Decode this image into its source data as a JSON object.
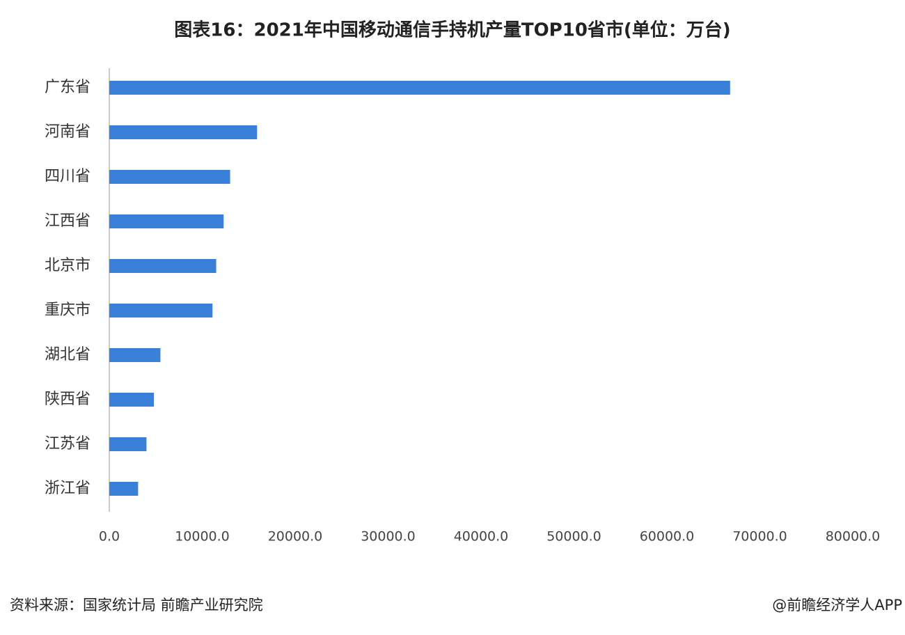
{
  "chart_data": {
    "type": "bar",
    "orientation": "horizontal",
    "title": "图表16：2021年中国移动通信手持机产量TOP10省市(单位：万台)",
    "categories": [
      "广东省",
      "河南省",
      "四川省",
      "江西省",
      "北京市",
      "重庆市",
      "湖北省",
      "陕西省",
      "江苏省",
      "浙江省"
    ],
    "values": [
      66800,
      15900,
      13000,
      12300,
      11500,
      11100,
      5500,
      4800,
      4000,
      3100
    ],
    "color": "#3a7fd8",
    "xlim": [
      0,
      80000
    ],
    "xticks": [
      {
        "value": 0,
        "label": "0.0"
      },
      {
        "value": 10000,
        "label": "10000.0"
      },
      {
        "value": 20000,
        "label": "20000.0"
      },
      {
        "value": 30000,
        "label": "30000.0"
      },
      {
        "value": 40000,
        "label": "40000.0"
      },
      {
        "value": 50000,
        "label": "50000.0"
      },
      {
        "value": 60000,
        "label": "60000.0"
      },
      {
        "value": 70000,
        "label": "70000.0"
      },
      {
        "value": 80000,
        "label": "80000.0"
      }
    ],
    "grid": false,
    "source": "资料来源：国家统计局 前瞻产业研究院",
    "brand": "@前瞻经济学人APP"
  }
}
